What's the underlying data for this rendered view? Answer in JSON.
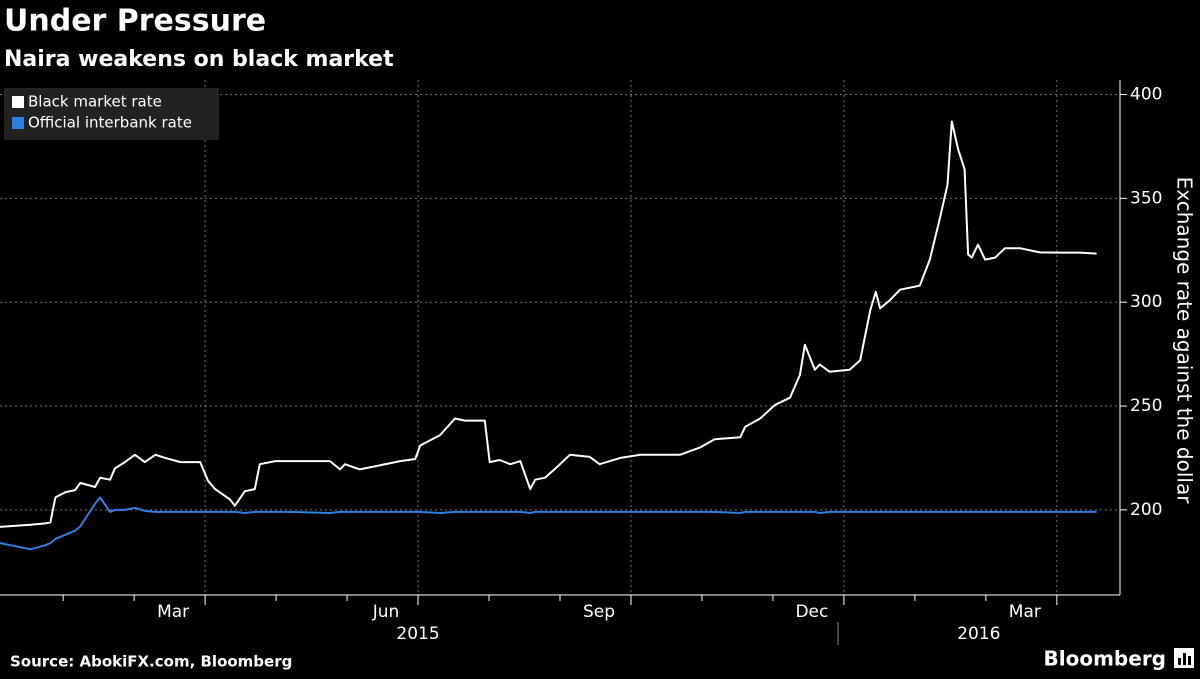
{
  "chart_data": {
    "type": "line",
    "title": "Under Pressure",
    "subtitle": "Naira weakens on black market",
    "y_label": "Exchange rate against the dollar",
    "source": "Source: AbokiFX.com, Bloomberg",
    "brand": "Bloomberg",
    "x": [
      -0.89,
      -0.46,
      -0.25,
      -0.18,
      -0.11,
      0.03,
      0.17,
      0.24,
      0.45,
      0.52,
      0.66,
      0.73,
      0.87,
      1.01,
      1.15,
      1.3,
      1.44,
      1.65,
      1.93,
      2.04,
      2.14,
      2.35,
      2.42,
      2.56,
      2.7,
      2.77,
      2.99,
      3.2,
      3.76,
      3.9,
      3.97,
      4.18,
      4.75,
      4.96,
      5.03,
      5.31,
      5.52,
      5.66,
      5.94,
      6.01,
      6.15,
      6.3,
      6.44,
      6.58,
      6.65,
      6.79,
      7.0,
      7.14,
      7.42,
      7.56,
      7.85,
      8.13,
      8.69,
      8.97,
      9.18,
      9.54,
      9.61,
      9.82,
      10.03,
      10.24,
      10.38,
      10.45,
      10.59,
      10.66,
      10.8,
      11.08,
      11.23,
      11.37,
      11.45,
      11.51,
      11.65,
      11.79,
      12.07,
      12.21,
      12.35,
      12.46,
      12.52,
      12.61,
      12.7,
      12.75,
      12.8,
      12.89,
      12.99,
      13.13,
      13.27,
      13.48,
      13.76,
      14.04,
      14.32,
      14.56
    ],
    "series": [
      {
        "name": "Black market rate",
        "color": "#ffffff",
        "values": [
          191.8,
          192.8,
          193.5,
          194,
          206,
          208.5,
          209.5,
          213,
          211,
          215.5,
          214.5,
          220,
          223,
          226.5,
          223,
          226.5,
          225,
          223,
          223,
          214,
          210,
          205,
          202,
          209,
          210,
          222,
          223.5,
          223.5,
          223.5,
          219.5,
          222,
          219.5,
          223.5,
          224.5,
          231,
          236,
          244,
          243,
          243,
          223,
          224,
          222,
          223.5,
          210,
          214.5,
          215.5,
          222,
          226.5,
          225.5,
          222,
          225,
          226.5,
          226.5,
          230,
          234,
          235,
          240,
          244,
          250.6,
          254,
          265,
          279.5,
          267.5,
          270,
          266.5,
          267.5,
          272,
          296,
          305,
          297,
          301,
          306,
          308,
          320.5,
          340,
          356.6,
          387,
          373.5,
          364,
          323,
          321.5,
          327.7,
          320.5,
          321.5,
          326,
          326,
          324,
          323.9,
          323.9,
          323.4
        ]
      },
      {
        "name": "Official interbank rate",
        "color": "#2d7fe0",
        "values": [
          184,
          181,
          183,
          184,
          186,
          188,
          190,
          192,
          203,
          206,
          199,
          200,
          200,
          201,
          199.5,
          199,
          199,
          199,
          199,
          199,
          199,
          199,
          199,
          198.5,
          199,
          199,
          199,
          199,
          198.5,
          199,
          199,
          199,
          199,
          199,
          199,
          198.5,
          199,
          199,
          199,
          199,
          199,
          199,
          199,
          198.5,
          199,
          199,
          199,
          199,
          199,
          199,
          199,
          199,
          199,
          199,
          199,
          198.5,
          199,
          199,
          199,
          199,
          199,
          199,
          199,
          198.5,
          199,
          199,
          199,
          199,
          199,
          199,
          199,
          199,
          199,
          199,
          199,
          199,
          199,
          199,
          199,
          199,
          199,
          199,
          199,
          199,
          199,
          199,
          199,
          199,
          199,
          199
        ]
      }
    ],
    "xlim": [
      -0.89,
      14.89
    ],
    "xticks": [
      {
        "value": 2,
        "label": "Mar"
      },
      {
        "value": 5,
        "label": "Jun"
      },
      {
        "value": 8,
        "label": "Sep"
      },
      {
        "value": 11,
        "label": "Dec"
      },
      {
        "value": 14,
        "label": "Mar"
      }
    ],
    "xminorticks": [
      0,
      1,
      3,
      4,
      6,
      7,
      9,
      10,
      12,
      13
    ],
    "year_labels": [
      {
        "value": 5,
        "label": "2015"
      },
      {
        "value": 12.9,
        "label": "2016"
      }
    ],
    "ylim": [
      159,
      407
    ],
    "yticks": [
      200,
      250,
      300,
      350,
      400
    ],
    "grid": true,
    "legend": "top-left"
  }
}
